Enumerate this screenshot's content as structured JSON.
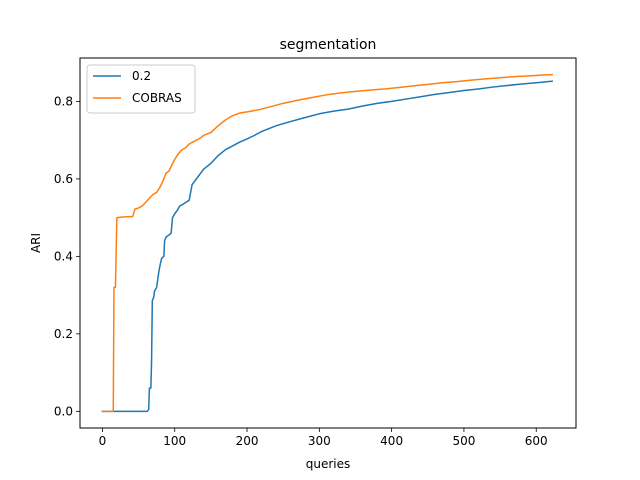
{
  "chart_data": {
    "type": "line",
    "title": "segmentation",
    "xlabel": "queries",
    "ylabel": "ARI",
    "xlim": [
      -31,
      655
    ],
    "ylim": [
      -0.043,
      0.912
    ],
    "xticks": [
      0,
      100,
      200,
      300,
      400,
      500,
      600
    ],
    "yticks": [
      0.0,
      0.2,
      0.4,
      0.6,
      0.8
    ],
    "xtick_labels": [
      "0",
      "100",
      "200",
      "300",
      "400",
      "500",
      "600"
    ],
    "ytick_labels": [
      "0.0",
      "0.2",
      "0.4",
      "0.6",
      "0.8"
    ],
    "grid": false,
    "legend_position": "top-left",
    "series": [
      {
        "name": "0.2",
        "color": "#1f77b4",
        "points": [
          [
            0,
            0.0
          ],
          [
            62,
            0.0
          ],
          [
            64,
            0.005
          ],
          [
            65,
            0.06
          ],
          [
            67,
            0.06
          ],
          [
            68,
            0.13
          ],
          [
            69,
            0.285
          ],
          [
            71,
            0.295
          ],
          [
            72,
            0.31
          ],
          [
            75,
            0.32
          ],
          [
            78,
            0.36
          ],
          [
            80,
            0.38
          ],
          [
            82,
            0.395
          ],
          [
            85,
            0.4
          ],
          [
            86,
            0.44
          ],
          [
            88,
            0.45
          ],
          [
            92,
            0.455
          ],
          [
            95,
            0.46
          ],
          [
            97,
            0.5
          ],
          [
            100,
            0.51
          ],
          [
            104,
            0.52
          ],
          [
            107,
            0.53
          ],
          [
            112,
            0.535
          ],
          [
            120,
            0.545
          ],
          [
            124,
            0.585
          ],
          [
            130,
            0.6
          ],
          [
            136,
            0.615
          ],
          [
            140,
            0.625
          ],
          [
            150,
            0.64
          ],
          [
            160,
            0.66
          ],
          [
            170,
            0.675
          ],
          [
            180,
            0.685
          ],
          [
            190,
            0.695
          ],
          [
            200,
            0.703
          ],
          [
            210,
            0.712
          ],
          [
            220,
            0.722
          ],
          [
            240,
            0.737
          ],
          [
            260,
            0.748
          ],
          [
            280,
            0.758
          ],
          [
            300,
            0.768
          ],
          [
            320,
            0.775
          ],
          [
            340,
            0.78
          ],
          [
            360,
            0.788
          ],
          [
            380,
            0.795
          ],
          [
            400,
            0.8
          ],
          [
            420,
            0.806
          ],
          [
            440,
            0.812
          ],
          [
            460,
            0.818
          ],
          [
            480,
            0.823
          ],
          [
            500,
            0.828
          ],
          [
            520,
            0.832
          ],
          [
            540,
            0.837
          ],
          [
            560,
            0.841
          ],
          [
            580,
            0.845
          ],
          [
            600,
            0.848
          ],
          [
            622,
            0.852
          ]
        ]
      },
      {
        "name": "COBRAS",
        "color": "#ff7f0e",
        "points": [
          [
            0,
            0.0
          ],
          [
            15,
            0.0
          ],
          [
            16,
            0.32
          ],
          [
            18,
            0.32
          ],
          [
            20,
            0.5
          ],
          [
            30,
            0.502
          ],
          [
            42,
            0.503
          ],
          [
            45,
            0.522
          ],
          [
            50,
            0.525
          ],
          [
            55,
            0.53
          ],
          [
            60,
            0.54
          ],
          [
            65,
            0.55
          ],
          [
            70,
            0.56
          ],
          [
            75,
            0.565
          ],
          [
            80,
            0.58
          ],
          [
            85,
            0.6
          ],
          [
            88,
            0.615
          ],
          [
            92,
            0.62
          ],
          [
            97,
            0.64
          ],
          [
            100,
            0.65
          ],
          [
            105,
            0.665
          ],
          [
            110,
            0.675
          ],
          [
            115,
            0.68
          ],
          [
            120,
            0.69
          ],
          [
            125,
            0.695
          ],
          [
            130,
            0.7
          ],
          [
            135,
            0.705
          ],
          [
            140,
            0.712
          ],
          [
            150,
            0.72
          ],
          [
            160,
            0.737
          ],
          [
            170,
            0.752
          ],
          [
            180,
            0.763
          ],
          [
            190,
            0.77
          ],
          [
            200,
            0.773
          ],
          [
            215,
            0.778
          ],
          [
            230,
            0.785
          ],
          [
            250,
            0.795
          ],
          [
            270,
            0.803
          ],
          [
            290,
            0.81
          ],
          [
            310,
            0.817
          ],
          [
            330,
            0.822
          ],
          [
            350,
            0.826
          ],
          [
            370,
            0.829
          ],
          [
            390,
            0.832
          ],
          [
            410,
            0.836
          ],
          [
            430,
            0.84
          ],
          [
            450,
            0.844
          ],
          [
            470,
            0.848
          ],
          [
            490,
            0.851
          ],
          [
            510,
            0.855
          ],
          [
            530,
            0.858
          ],
          [
            550,
            0.861
          ],
          [
            570,
            0.864
          ],
          [
            590,
            0.866
          ],
          [
            610,
            0.868
          ],
          [
            622,
            0.869
          ]
        ]
      }
    ]
  }
}
